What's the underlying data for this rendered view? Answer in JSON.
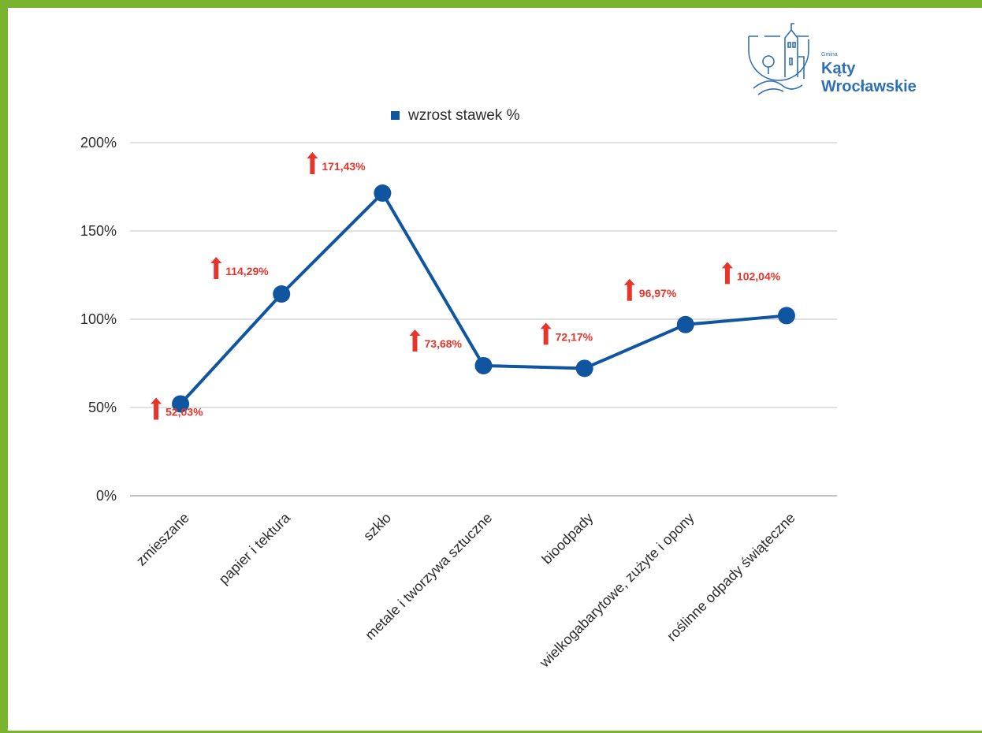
{
  "logo": {
    "line1": "Gmina",
    "line2": "Kąty",
    "line3": "Wrocławskie"
  },
  "colors": {
    "frame": "#7ab42f",
    "series": "#0f55a0",
    "label": "#e8352b",
    "grid": "#cfcfcf"
  },
  "chart_data": {
    "type": "line",
    "categories": [
      "zmieszane",
      "papier i tektura",
      "szkło",
      "metale i tworzywa sztuczne",
      "bioodpady",
      "wielkogabarytowe, zużyte i opony",
      "roślinne odpady świąteczne"
    ],
    "series": [
      {
        "name": "wzrost stawek %",
        "values": [
          52.03,
          114.29,
          171.43,
          73.68,
          72.17,
          96.97,
          102.04
        ]
      }
    ],
    "data_labels": [
      "52,03%",
      "114,29%",
      "171,43%",
      "73,68%",
      "72,17%",
      "96,97%",
      "102,04%"
    ],
    "y_ticks": [
      0,
      50,
      100,
      150,
      200
    ],
    "y_tick_labels": [
      "0%",
      "50%",
      "100%",
      "150%",
      "200%"
    ],
    "ylim": [
      0,
      200
    ],
    "grid": true,
    "legend": "top-center"
  }
}
